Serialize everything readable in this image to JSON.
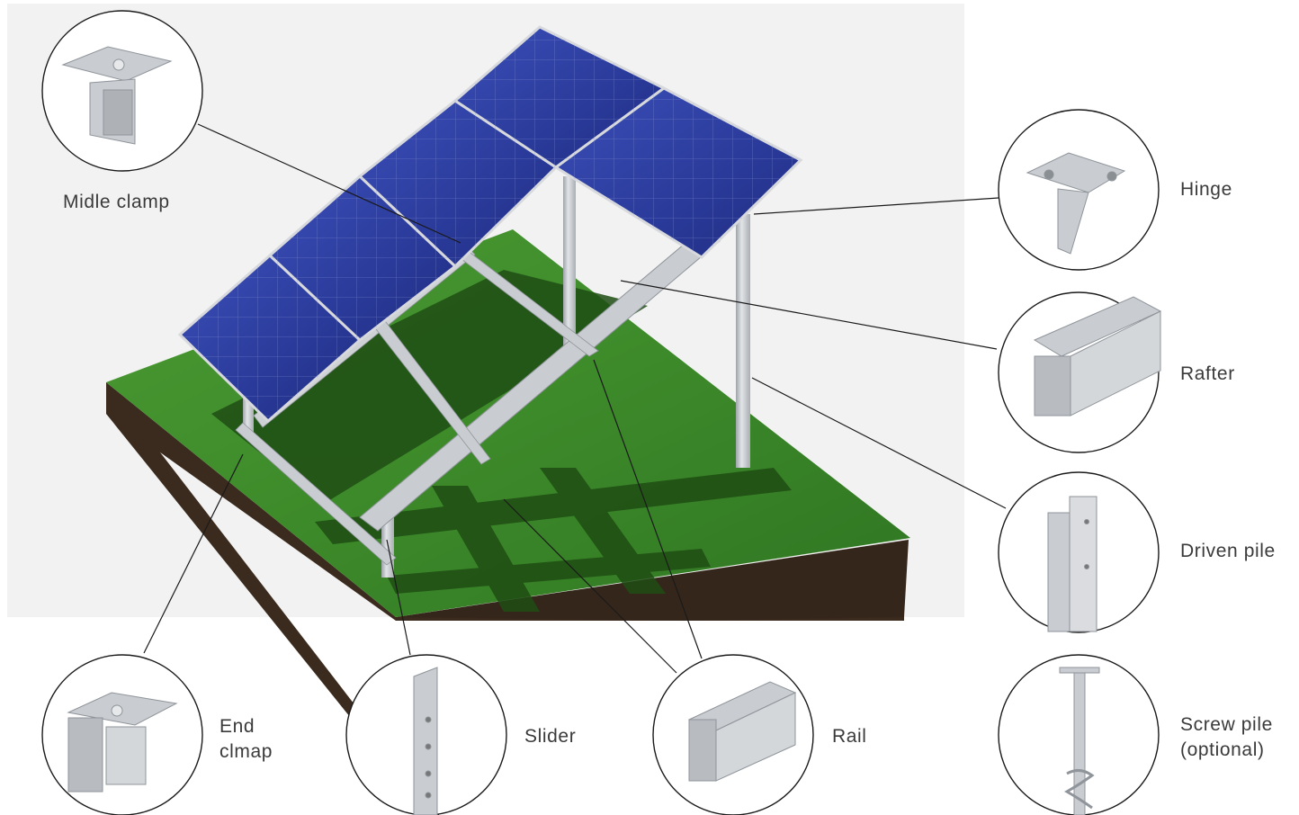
{
  "components": {
    "middle_clamp": "Midle clamp",
    "hinge": "Hinge",
    "rafter": "Rafter",
    "driven_pile": "Driven pile",
    "screw_pile_line1": "Screw pile",
    "screw_pile_line2": "(optional)",
    "end_clamp_line1": "End",
    "end_clamp_line2": "clmap",
    "slider": "Slider",
    "rail": "Rail"
  },
  "colors": {
    "backdrop": "#f2f2f2",
    "grass": "#3f8f2c",
    "soil": "#3b2a1e",
    "panel": "#26358f",
    "aluminium": "#c9ccd0",
    "leader_line": "#1a1a1a"
  }
}
